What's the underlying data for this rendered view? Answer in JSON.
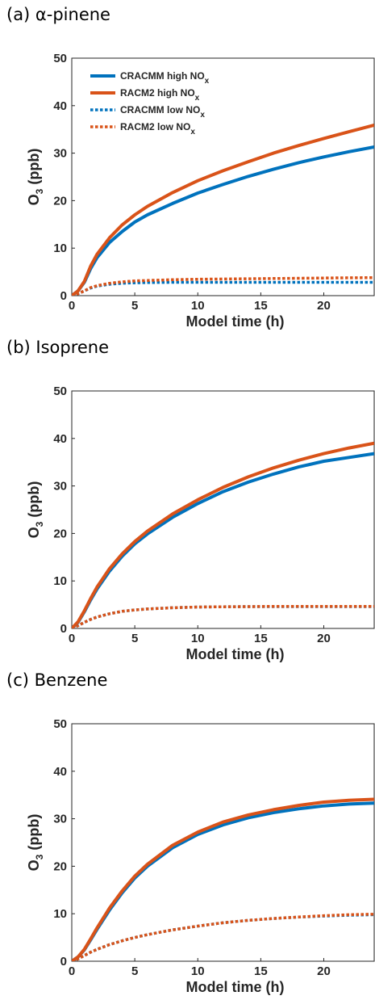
{
  "legend": [
    {
      "name": "CRACMM high NO",
      "sub": "x"
    },
    {
      "name": "RACM2 high NO",
      "sub": "x"
    },
    {
      "name": "CRACMM low NO",
      "sub": "x"
    },
    {
      "name": "RACM2 low NO",
      "sub": "x"
    }
  ],
  "colors": {
    "cracmm": "#0072BD",
    "racm2": "#D95319"
  },
  "chart_data": [
    {
      "type": "line",
      "panel_label": "(a) α-pinene",
      "xlabel": "Model time (h)",
      "ylabel": "O",
      "ylabel_sub": "3",
      "ylabel_unit": " (ppb)",
      "xlim": [
        0,
        24
      ],
      "ylim": [
        0,
        50
      ],
      "xticks": [
        "0",
        "5",
        "10",
        "15",
        "20"
      ],
      "yticks": [
        "0",
        "10",
        "20",
        "30",
        "40",
        "50"
      ],
      "legend_position": "top-left",
      "x": [
        0,
        0.5,
        1,
        1.5,
        2,
        3,
        4,
        5,
        6,
        8,
        10,
        12,
        14,
        16,
        18,
        20,
        22,
        24
      ],
      "series": [
        {
          "name": "CRACMM high NOx",
          "style": "solid",
          "color": "cracmm",
          "values": [
            0,
            1.0,
            2.8,
            5.7,
            8.0,
            11.2,
            13.5,
            15.5,
            17.0,
            19.4,
            21.6,
            23.4,
            25.1,
            26.6,
            28.0,
            29.2,
            30.3,
            31.3
          ]
        },
        {
          "name": "RACM2 high NOx",
          "style": "solid",
          "color": "racm2",
          "values": [
            0,
            1.0,
            3.0,
            6.2,
            8.7,
            12.2,
            14.9,
            17.0,
            18.8,
            21.7,
            24.2,
            26.3,
            28.2,
            30.0,
            31.6,
            33.1,
            34.5,
            35.9
          ]
        },
        {
          "name": "CRACMM low NOx",
          "style": "dotted",
          "color": "cracmm",
          "values": [
            0,
            0.4,
            1.0,
            1.6,
            2.0,
            2.4,
            2.6,
            2.7,
            2.75,
            2.8,
            2.8,
            2.8,
            2.8,
            2.8,
            2.8,
            2.8,
            2.8,
            2.8
          ]
        },
        {
          "name": "RACM2 low NOx",
          "style": "dotted",
          "color": "racm2",
          "values": [
            0,
            0.4,
            1.0,
            1.7,
            2.1,
            2.6,
            2.9,
            3.1,
            3.2,
            3.35,
            3.45,
            3.5,
            3.55,
            3.6,
            3.65,
            3.7,
            3.75,
            3.8
          ]
        }
      ]
    },
    {
      "type": "line",
      "panel_label": "(b) Isoprene",
      "xlabel": "Model time (h)",
      "ylabel": "O",
      "ylabel_sub": "3",
      "ylabel_unit": " (ppb)",
      "xlim": [
        0,
        24
      ],
      "ylim": [
        0,
        50
      ],
      "xticks": [
        "0",
        "5",
        "10",
        "15",
        "20"
      ],
      "yticks": [
        "0",
        "10",
        "20",
        "30",
        "40",
        "50"
      ],
      "x": [
        0,
        0.5,
        1,
        1.5,
        2,
        3,
        4,
        5,
        6,
        8,
        10,
        12,
        14,
        16,
        18,
        20,
        22,
        24
      ],
      "series": [
        {
          "name": "CRACMM high NOx",
          "style": "solid",
          "color": "cracmm",
          "values": [
            0,
            1.3,
            3.5,
            6.0,
            8.3,
            12.1,
            15.2,
            17.8,
            19.9,
            23.4,
            26.3,
            28.8,
            30.8,
            32.5,
            34.0,
            35.2,
            36.0,
            36.8
          ]
        },
        {
          "name": "RACM2 high NOx",
          "style": "solid",
          "color": "racm2",
          "values": [
            0,
            1.4,
            3.7,
            6.3,
            8.7,
            12.6,
            15.7,
            18.3,
            20.5,
            24.1,
            27.1,
            29.7,
            31.9,
            33.8,
            35.4,
            36.8,
            38.0,
            39.0
          ]
        },
        {
          "name": "CRACMM low NOx",
          "style": "dotted",
          "color": "cracmm",
          "values": [
            0,
            0.6,
            1.3,
            1.9,
            2.4,
            3.1,
            3.6,
            3.9,
            4.1,
            4.35,
            4.5,
            4.55,
            4.6,
            4.6,
            4.6,
            4.6,
            4.6,
            4.6
          ]
        },
        {
          "name": "RACM2 low NOx",
          "style": "dotted",
          "color": "racm2",
          "values": [
            0,
            0.6,
            1.3,
            1.9,
            2.4,
            3.1,
            3.6,
            3.9,
            4.1,
            4.35,
            4.5,
            4.55,
            4.6,
            4.65,
            4.65,
            4.65,
            4.65,
            4.65
          ]
        }
      ]
    },
    {
      "type": "line",
      "panel_label": "(c) Benzene",
      "xlabel": "Model time (h)",
      "ylabel": "O",
      "ylabel_sub": "3",
      "ylabel_unit": " (ppb)",
      "xlim": [
        0,
        24
      ],
      "ylim": [
        0,
        50
      ],
      "xticks": [
        "0",
        "5",
        "10",
        "15",
        "20"
      ],
      "yticks": [
        "0",
        "10",
        "20",
        "30",
        "40",
        "50"
      ],
      "x": [
        0,
        0.5,
        1,
        1.5,
        2,
        3,
        4,
        5,
        6,
        8,
        10,
        12,
        14,
        16,
        18,
        20,
        22,
        24
      ],
      "series": [
        {
          "name": "CRACMM high NOx",
          "style": "solid",
          "color": "cracmm",
          "values": [
            0,
            0.9,
            2.4,
            4.5,
            6.7,
            10.8,
            14.4,
            17.5,
            20.0,
            23.9,
            26.7,
            28.7,
            30.2,
            31.3,
            32.1,
            32.7,
            33.1,
            33.3
          ]
        },
        {
          "name": "RACM2 high NOx",
          "style": "solid",
          "color": "racm2",
          "values": [
            0,
            0.9,
            2.5,
            4.7,
            7.0,
            11.2,
            14.8,
            17.9,
            20.4,
            24.4,
            27.2,
            29.3,
            30.8,
            31.9,
            32.8,
            33.5,
            33.9,
            34.1
          ]
        },
        {
          "name": "CRACMM low NOx",
          "style": "dotted",
          "color": "cracmm",
          "values": [
            0,
            0.5,
            1.2,
            1.9,
            2.5,
            3.5,
            4.3,
            5.0,
            5.6,
            6.6,
            7.4,
            8.1,
            8.6,
            9.0,
            9.3,
            9.5,
            9.7,
            9.8
          ]
        },
        {
          "name": "RACM2 low NOx",
          "style": "dotted",
          "color": "racm2",
          "values": [
            0,
            0.5,
            1.2,
            1.9,
            2.5,
            3.5,
            4.3,
            5.0,
            5.6,
            6.6,
            7.4,
            8.1,
            8.6,
            9.0,
            9.3,
            9.6,
            9.8,
            9.9
          ]
        }
      ]
    }
  ]
}
